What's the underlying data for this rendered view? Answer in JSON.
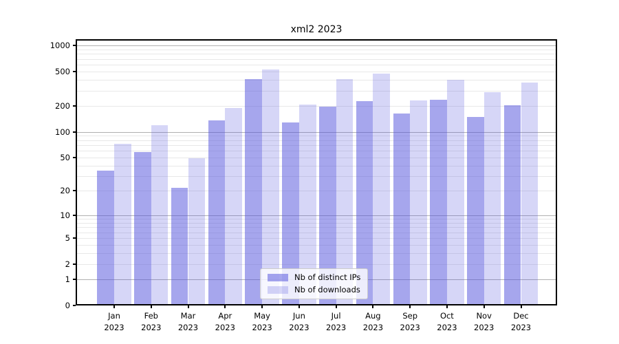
{
  "title": "xml2 2023",
  "chart_data": {
    "type": "bar",
    "title": "xml2 2023",
    "yscale": "log1p",
    "ylim": [
      0,
      1180
    ],
    "yticks": [
      0,
      1,
      2,
      5,
      10,
      20,
      50,
      100,
      200,
      500,
      1000
    ],
    "grid": true,
    "legend_position": "lower center",
    "categories": [
      {
        "month": "Jan",
        "year": "2023"
      },
      {
        "month": "Feb",
        "year": "2023"
      },
      {
        "month": "Mar",
        "year": "2023"
      },
      {
        "month": "Apr",
        "year": "2023"
      },
      {
        "month": "May",
        "year": "2023"
      },
      {
        "month": "Jun",
        "year": "2023"
      },
      {
        "month": "Jul",
        "year": "2023"
      },
      {
        "month": "Aug",
        "year": "2023"
      },
      {
        "month": "Sep",
        "year": "2023"
      },
      {
        "month": "Oct",
        "year": "2023"
      },
      {
        "month": "Nov",
        "year": "2023"
      },
      {
        "month": "Dec",
        "year": "2023"
      }
    ],
    "series": [
      {
        "name": "Nb of distinct IPs",
        "color": "rgba(85,85,221,0.52)",
        "values": [
          35,
          58,
          22,
          136,
          405,
          128,
          196,
          228,
          163,
          235,
          150,
          202
        ]
      },
      {
        "name": "Nb of downloads",
        "color": "rgba(85,85,221,0.24)",
        "values": [
          72,
          120,
          49,
          190,
          530,
          207,
          407,
          470,
          230,
          402,
          286,
          371
        ]
      }
    ],
    "colors": {
      "grid_major": "#b0b0b0",
      "grid_minor": "#e8e8e8",
      "spine": "#000000",
      "legend_border": "#cccccc"
    }
  }
}
